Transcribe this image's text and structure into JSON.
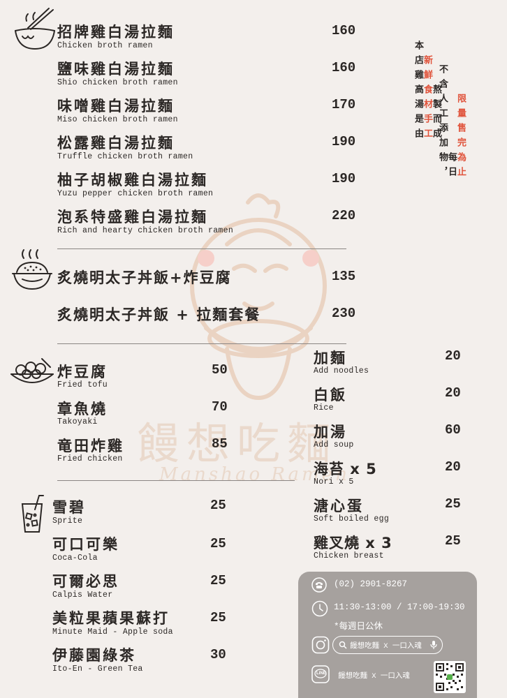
{
  "ramen": [
    {
      "zh": "招牌雞白湯拉麵",
      "en": "Chicken broth ramen",
      "price": "160"
    },
    {
      "zh": "鹽味雞白湯拉麵",
      "en": "Shio chicken broth ramen",
      "price": "160"
    },
    {
      "zh": "味噌雞白湯拉麵",
      "en": "Miso chicken broth ramen",
      "price": "170"
    },
    {
      "zh": "松露雞白湯拉麵",
      "en": "Truffle chicken broth ramen",
      "price": "190"
    },
    {
      "zh": "柚子胡椒雞白湯拉麵",
      "en": "Yuzu pepper chicken broth ramen",
      "price": "190"
    },
    {
      "zh": "泡系特盛雞白湯拉麵",
      "en": "Rich and hearty chicken broth ramen",
      "price": "220"
    }
  ],
  "rice": [
    {
      "zh": "炙燒明太子丼飯+炸豆腐",
      "price": "135"
    },
    {
      "zh": "炙燒明太子丼飯 + 拉麵套餐",
      "price": "230"
    }
  ],
  "sides": [
    {
      "zh": "炸豆腐",
      "en": "Fried tofu",
      "price": "50"
    },
    {
      "zh": "章魚燒",
      "en": "Takoyaki",
      "price": "70"
    },
    {
      "zh": "竜田炸雞",
      "en": "Fried chicken",
      "price": "85"
    }
  ],
  "drinks": [
    {
      "zh": "雪碧",
      "en": "Sprite",
      "price": "25"
    },
    {
      "zh": "可口可樂",
      "en": "Coca-Cola",
      "price": "25"
    },
    {
      "zh": "可爾必思",
      "en": "Calpis Water",
      "price": "25"
    },
    {
      "zh": "美粒果蘋果蘇打",
      "en": "Minute Maid - Apple soda",
      "price": "25"
    },
    {
      "zh": "伊藤園綠茶",
      "en": "Ito-En - Green Tea",
      "price": "30"
    }
  ],
  "addons": [
    {
      "zh": "加麵",
      "en": "Add noodles",
      "price": "20"
    },
    {
      "zh": "白飯",
      "en": "Rice",
      "price": "20"
    },
    {
      "zh": "加湯",
      "en": "Add soup",
      "price": "60"
    },
    {
      "zh": "海苔 x 5",
      "en": "Nori x 5",
      "price": "20"
    },
    {
      "zh": "溏心蛋",
      "en": "Soft boiled egg",
      "price": "25"
    },
    {
      "zh": "雞叉燒 x 3",
      "en": "Chicken breast",
      "price": "25"
    }
  ],
  "notice": {
    "col1_a": "本店雞高湯是由",
    "col1_b": "新鮮食材手工",
    "col1_c": "熬製而成",
    "col2_a": "不含人工添加物，",
    "col2_b": "每日",
    "col2_c": "限量售完為止"
  },
  "info": {
    "phone": "(02) 2901-8267",
    "hours": "11:30-13:00 / 17:00-19:30",
    "closed": "*每週日公休",
    "ig_search": "饅想吃麵 X 一口入魂",
    "line_name": "饅想吃麵 X 一口入魂",
    "line_label": "LINE"
  },
  "watermark": {
    "zh": "饅想吃麵",
    "en": "Manshao Ramen"
  },
  "colors": {
    "background": "#f3efec",
    "accent_red": "#e0533b",
    "info_box": "#a6a19e"
  }
}
